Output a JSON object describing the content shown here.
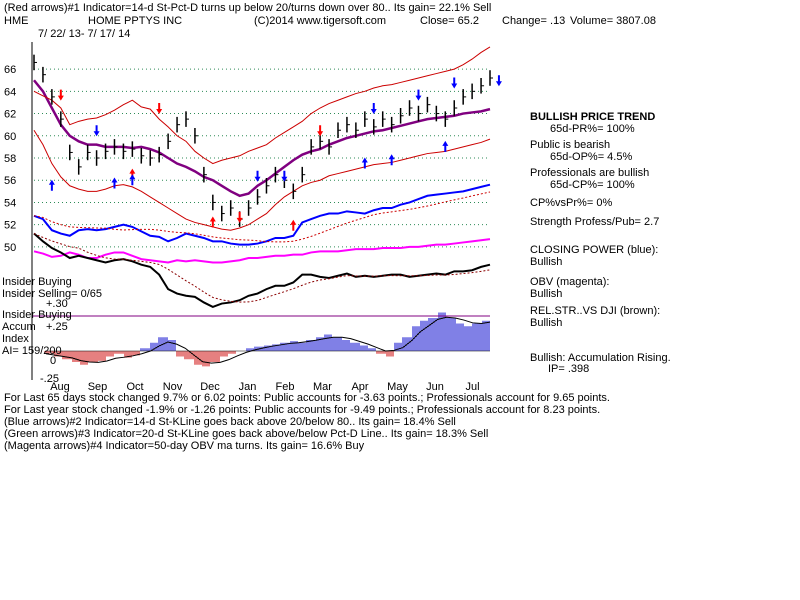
{
  "header": {
    "line1": "(Red arrows)#1 Indicator=14-d St-Pct-D turns up below 20/turns down over 80.. Its gain= 22.1% Sell",
    "ticker": "HME",
    "company": "HOME PPTYS INC",
    "copyright": "(C)2014 www.tigersoft.com",
    "close": "Close=  65.2",
    "change": "Change= .13",
    "volume": "Volume= 3807.08",
    "date_range": "7/ 22/ 13- 7/ 17/ 14"
  },
  "chart_data": {
    "type": "line",
    "title": "HME HOME PPTYS INC",
    "x_months": [
      "Aug",
      "Sep",
      "Oct",
      "Nov",
      "Dec",
      "Jan",
      "Feb",
      "Mar",
      "Apr",
      "May",
      "Jun",
      "Jul"
    ],
    "y_ticks": [
      50,
      52,
      54,
      56,
      58,
      60,
      62,
      64,
      66
    ],
    "ylim": [
      49,
      67
    ],
    "grid": "dotted-horizontal",
    "price_series": [
      {
        "name": "Price",
        "values": [
          66.6,
          65.5,
          63.5,
          61.5,
          58.5,
          57.2,
          58.5,
          58.0,
          58.6,
          59.0,
          58.6,
          58.8,
          58.2,
          58.0,
          58.3,
          59.5,
          61.0,
          61.5,
          60.0,
          56.5,
          54.0,
          53.0,
          53.5,
          52.5,
          53.5,
          54.5,
          55.5,
          56.5,
          56.0,
          55.0,
          56.5,
          59.0,
          59.5,
          59.0,
          60.5,
          61.0,
          60.5,
          61.5,
          60.8,
          61.5,
          61.0,
          61.8,
          62.5,
          62.0,
          62.8,
          62.0,
          61.5,
          62.5,
          63.5,
          64.0,
          64.5,
          65.2
        ]
      },
      {
        "name": "21-day MA",
        "values": [
          65.0,
          64.0,
          62.5,
          61.0,
          60.0,
          59.5,
          59.2,
          59.2,
          59.0,
          59.0,
          59.0,
          58.9,
          59.0,
          58.8,
          58.5,
          58.0,
          57.5,
          57.2,
          56.8,
          56.3,
          56.0,
          55.5,
          55.0,
          54.6,
          54.8,
          55.5,
          56.0,
          56.6,
          57.2,
          57.8,
          58.3,
          58.6,
          58.8,
          59.2,
          59.5,
          59.8,
          60.0,
          60.2,
          60.4,
          60.5,
          60.7,
          60.9,
          61.1,
          61.3,
          61.5,
          61.6,
          61.7,
          61.8,
          62.0,
          62.1,
          62.2,
          62.4
        ]
      },
      {
        "name": "Upper band",
        "values": [
          64.0,
          63.6,
          63.2,
          62.5,
          61.0,
          61.3,
          61.5,
          61.6,
          61.9,
          62.3,
          62.8,
          63.2,
          62.6,
          62.4,
          61.5,
          60.8,
          60.0,
          59.5,
          58.6,
          58.0,
          57.5,
          57.8,
          58.0,
          58.2,
          58.6,
          58.9,
          59.2,
          59.8,
          60.3,
          60.8,
          61.3,
          62.0,
          62.5,
          62.9,
          63.2,
          63.5,
          63.8,
          64.0,
          64.3,
          64.5,
          64.6,
          64.8,
          65.0,
          65.2,
          65.4,
          65.6,
          65.8,
          66.0,
          66.4,
          66.9,
          67.5,
          68.0
        ]
      },
      {
        "name": "Lower band",
        "values": [
          60.5,
          59.2,
          57.5,
          56.3,
          55.5,
          55.2,
          55.0,
          55.0,
          55.2,
          55.5,
          55.6,
          55.4,
          55.0,
          54.5,
          54.0,
          53.5,
          53.0,
          52.5,
          52.2,
          52.0,
          51.8,
          51.6,
          51.5,
          51.7,
          52.0,
          52.5,
          53.0,
          53.8,
          54.5,
          55.0,
          55.5,
          55.8,
          56.0,
          56.4,
          56.6,
          56.8,
          57.0,
          57.2,
          57.4,
          57.5,
          57.6,
          57.8,
          58.0,
          58.2,
          58.4,
          58.5,
          58.6,
          58.8,
          59.0,
          59.2,
          59.4,
          59.7
        ]
      },
      {
        "name": "Closing Power",
        "values": [
          52.8,
          52.5,
          51.5,
          51.2,
          51.0,
          51.5,
          51.6,
          51.5,
          51.6,
          51.8,
          52.0,
          51.8,
          51.4,
          51.0,
          50.9,
          50.5,
          50.8,
          51.2,
          51.0,
          50.8,
          50.5,
          50.5,
          50.3,
          50.2,
          50.2,
          50.3,
          50.5,
          50.8,
          50.8,
          51.0,
          52.2,
          52.5,
          52.8,
          53.0,
          53.0,
          53.2,
          53.1,
          53.0,
          53.3,
          53.5,
          53.5,
          53.8,
          54.0,
          54.3,
          54.6,
          54.7,
          54.8,
          54.9,
          55.0,
          55.2,
          55.4,
          55.6
        ]
      }
    ],
    "price_axis_series": [
      {
        "name": "OBV",
        "values": [
          49.6,
          49.4,
          49.1,
          49.2,
          49.5,
          49.3,
          49.0,
          49.0,
          49.3,
          49.5,
          49.5,
          49.2,
          48.9,
          48.8,
          48.7,
          48.6,
          48.8,
          48.7,
          48.8,
          48.7,
          48.6,
          48.6,
          48.7,
          48.8,
          49.0,
          49.0,
          49.1,
          49.2,
          49.2,
          49.3,
          49.3,
          49.5,
          49.6,
          49.6,
          49.6,
          49.7,
          49.8,
          49.8,
          49.8,
          49.9,
          49.9,
          49.9,
          50.0,
          50.0,
          50.1,
          50.2,
          50.2,
          50.3,
          50.4,
          50.5,
          50.6,
          50.7
        ]
      },
      {
        "name": "Relative Strength vs DJI",
        "values": [
          51.2,
          50.5,
          49.9,
          49.5,
          49.0,
          49.2,
          49.0,
          48.8,
          48.6,
          48.8,
          48.9,
          48.7,
          48.4,
          48.2,
          47.5,
          46.2,
          45.8,
          45.6,
          45.5,
          45.0,
          44.6,
          44.9,
          45.0,
          45.2,
          45.6,
          45.8,
          46.2,
          46.5,
          46.5,
          46.8,
          47.5,
          47.5,
          47.3,
          47.2,
          47.4,
          47.6,
          47.3,
          47.4,
          47.3,
          47.4,
          47.5,
          47.5,
          47.3,
          47.4,
          47.5,
          47.6,
          47.5,
          47.8,
          47.8,
          47.9,
          48.2,
          48.4
        ]
      }
    ],
    "accumulation_index": [
      -5,
      -10,
      -15,
      -20,
      -25,
      -20,
      -18,
      -10,
      -5,
      -12,
      -8,
      5,
      15,
      25,
      20,
      -10,
      -15,
      -25,
      -28,
      -20,
      -10,
      -5,
      0,
      5,
      8,
      10,
      12,
      15,
      18,
      15,
      20,
      25,
      30,
      25,
      20,
      15,
      10,
      5,
      -5,
      -10,
      15,
      25,
      45,
      55,
      60,
      70,
      60,
      50,
      45,
      50,
      55,
      60
    ],
    "accum_ticks": [
      "+.25",
      "Index",
      "AI= 159/200",
      "-.25"
    ],
    "accum_zero": "0"
  },
  "arrows": {
    "red": [
      [
        3,
        63.7
      ],
      [
        11,
        56.5
      ],
      [
        14,
        62.5
      ],
      [
        20,
        52.2
      ],
      [
        23,
        52.7
      ],
      [
        29,
        51.9
      ],
      [
        32,
        60.5
      ]
    ],
    "blue": [
      [
        7,
        60.5
      ],
      [
        25,
        56.4
      ],
      [
        28,
        56.4
      ],
      [
        38,
        62.5
      ],
      [
        43,
        63.7
      ],
      [
        47,
        64.8
      ],
      [
        52,
        65.0
      ]
    ],
    "green": [
      [
        2,
        55.5
      ],
      [
        9,
        55.7
      ],
      [
        11,
        56.0
      ],
      [
        37,
        57.5
      ],
      [
        40,
        57.8
      ],
      [
        46,
        59.0
      ]
    ]
  },
  "labels": {
    "insider_buying": "Insider Buying",
    "insider_selling": "Insider Selling= 0/65",
    "insider_buying2": "Insider Buying",
    "accum": "Accum",
    "plus30": "+.30"
  },
  "right_panel": {
    "trend": "BULLISH PRICE TREND",
    "pr": "65d-PR%= 100%",
    "public": "Public is bearish",
    "op": "65d-OP%= 4.5%",
    "pros": "Professionals are bullish",
    "cp": "65d-CP%= 100%",
    "cpvspr": "CP%vsPr%=  0%",
    "strength": "Strength Profess/Pub= 2.7",
    "closing_power": "CLOSING POWER (blue):",
    "cp_bullish": "Bullish",
    "obv": "OBV (magenta):",
    "obv_bullish": "Bullish",
    "relstr": "REL.STR..VS DJI (brown):",
    "relstr_bullish": "Bullish",
    "accum_rising": "Bullish: Accumulation Rising.",
    "ip": "IP=  .398"
  },
  "footer": [
    "For Last 65 days stock changed  9.7% or  6.02 points:  Public accounts for -3.63 points.;  Professionals account for  9.65 points.",
    "For Last year stock changed -1.9% or -1.26 points:  Public accounts for -9.49 points.;  Professionals account for  8.23 points.",
    "(Blue arrows)#2 Indicator=14-d St-KLine goes back above 20/below 80.. Its gain= 18.4% Sell",
    "(Green arrows)#3 Indicator=20-d St-KLine goes back above/below Pct-D Line.. Its gain= 18.3% Sell",
    "(Magenta arrows)#4 Indicator=50-day OBV ma turns. Its gain= 16.6% Buy"
  ],
  "colors": {
    "price": "#000000",
    "ma": "#800080",
    "band": "#cc0000",
    "closing_power": "#0000ff",
    "obv": "#ff00ff",
    "relstr": "#8b0000",
    "accum_pos": "#0000cc",
    "accum_neg": "#cc0000",
    "arrow_red": "#ff0000",
    "arrow_blue": "#0000ff",
    "arrow_green": "#0000ff"
  }
}
